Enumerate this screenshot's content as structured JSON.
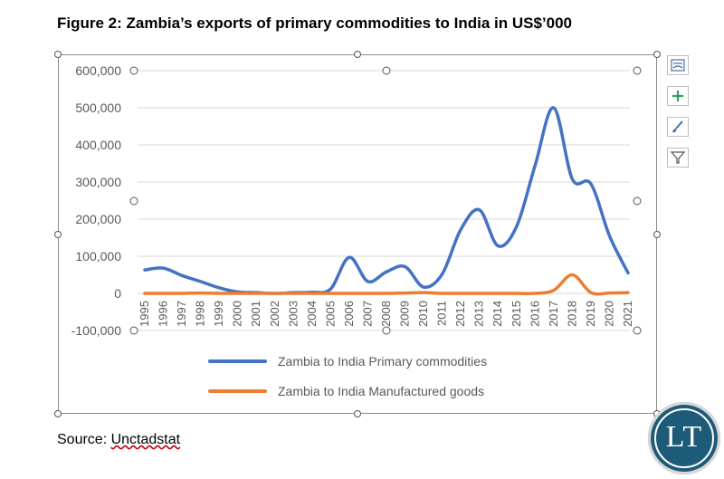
{
  "figure_title": "Figure 2: Zambia’s exports of primary commodities to India in US$’000",
  "source_prefix": "Source: ",
  "source_name": "Unctadstat",
  "logo_text": "LT",
  "side_buttons": [
    {
      "name": "chart-elements-button",
      "icon": "layout-icon"
    },
    {
      "name": "add-element-button",
      "icon": "plus-icon"
    },
    {
      "name": "chart-styles-button",
      "icon": "brush-icon"
    },
    {
      "name": "chart-filters-button",
      "icon": "filter-icon"
    }
  ],
  "chart_data": {
    "type": "line",
    "title": "",
    "xlabel": "",
    "ylabel": "",
    "x": [
      "1995",
      "1996",
      "1997",
      "1998",
      "1999",
      "2000",
      "2001",
      "2002",
      "2003",
      "2004",
      "2005",
      "2006",
      "2007",
      "2008",
      "2009",
      "2010",
      "2011",
      "2012",
      "2013",
      "2014",
      "2015",
      "2016",
      "2017",
      "2018",
      "2019",
      "2020",
      "2021"
    ],
    "ylim": [
      -100000,
      600000
    ],
    "yticks": [
      -100000,
      0,
      100000,
      200000,
      300000,
      400000,
      500000,
      600000
    ],
    "ytick_labels": [
      "-100,000",
      "0",
      "100,000",
      "200,000",
      "300,000",
      "400,000",
      "500,000",
      "600,000"
    ],
    "grid": true,
    "legend_position": "bottom",
    "series": [
      {
        "name": "Zambia to India Primary commodities",
        "color": "#4472c4",
        "values": [
          63000,
          68000,
          48000,
          32000,
          15000,
          4000,
          2000,
          0,
          2000,
          3000,
          12000,
          97000,
          32000,
          58000,
          72000,
          17000,
          52000,
          172000,
          225000,
          128000,
          180000,
          345000,
          500000,
          308000,
          295000,
          155000,
          55000
        ]
      },
      {
        "name": "Zambia to India Manufactured goods",
        "color": "#ed7d31",
        "values": [
          0,
          0,
          0,
          1000,
          0,
          0,
          0,
          0,
          0,
          0,
          0,
          0,
          0,
          0,
          1000,
          2000,
          0,
          0,
          0,
          0,
          0,
          0,
          8000,
          50000,
          2000,
          1000,
          2000
        ]
      }
    ]
  }
}
